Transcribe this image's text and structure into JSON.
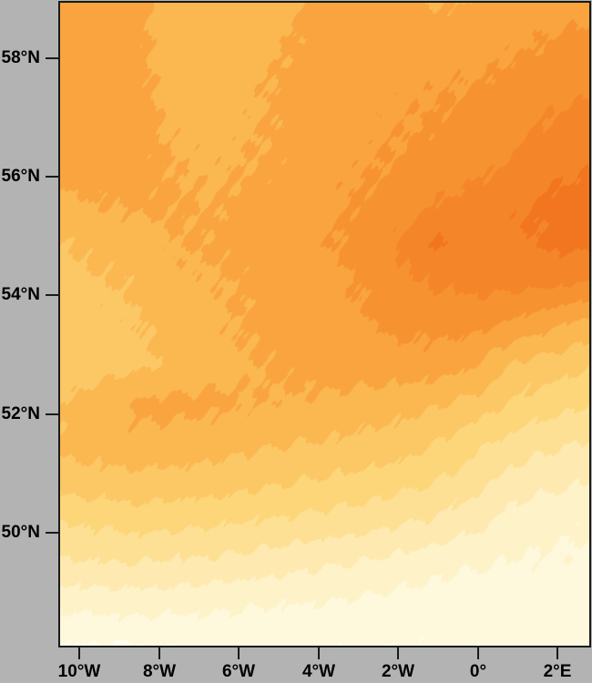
{
  "figure": {
    "background_color": "#B3B3B3",
    "frame_color": "#1A1A1A",
    "tick_color": "#1A1A1A",
    "label_color": "#000000"
  },
  "chart_data": {
    "type": "heatmap",
    "subtype": "filled-contour-map",
    "title": "",
    "xlabel": "",
    "ylabel": "",
    "legend": "none",
    "grid_lines": "off",
    "x_axis": {
      "kind": "longitude",
      "tick_labels": [
        "10°W",
        "8°W",
        "6°W",
        "4°W",
        "2°W",
        "0°",
        "2°E"
      ],
      "tick_values": [
        -10,
        -8,
        -6,
        -4,
        -2,
        0,
        2
      ],
      "range": [
        -10.48,
        2.8
      ]
    },
    "y_axis": {
      "kind": "latitude",
      "tick_labels": [
        "58°N",
        "56°N",
        "54°N",
        "52°N",
        "50°N"
      ],
      "tick_values": [
        58,
        56,
        54,
        52,
        50
      ],
      "range": [
        48.1,
        58.93
      ]
    },
    "palette_light_to_dark": [
      "#FFFDEC",
      "#FEF8DC",
      "#FEF2C8",
      "#FEEAB1",
      "#FDE094",
      "#FDD67A",
      "#FCC765",
      "#FBB750",
      "#F9A43E",
      "#F79231",
      "#F58529",
      "#F2761F"
    ],
    "band_note": "12 discrete fill bands; value index increases from pale cream (south) to deep orange (northeast ridge); no colorbar shown in figure",
    "grid": {
      "lons": [
        -10.48,
        -9.53,
        -8.59,
        -7.64,
        -6.68,
        -5.75,
        -4.79,
        -3.84,
        -2.9,
        -1.95,
        -1.01,
        -0.06,
        0.9,
        1.83,
        2.79
      ],
      "lats": [
        58.91,
        58.24,
        57.56,
        56.88,
        56.2,
        55.53,
        54.86,
        54.17,
        53.5,
        52.82,
        52.15,
        51.46,
        50.79,
        50.12,
        49.44,
        48.76,
        48.08
      ],
      "levels": [
        [
          8.4,
          8.5,
          8.4,
          7.4,
          7.3,
          7.4,
          7.8,
          8.3,
          8.5,
          8.4,
          7.9,
          8.1,
          8.5,
          8.6,
          8.6
        ],
        [
          8.5,
          8.5,
          8.2,
          7.5,
          7.4,
          7.6,
          8.0,
          8.4,
          8.6,
          8.7,
          8.5,
          8.6,
          8.8,
          9.1,
          9.3
        ],
        [
          8.5,
          8.5,
          8.3,
          7.6,
          7.5,
          7.8,
          8.2,
          8.5,
          8.7,
          8.8,
          8.9,
          9.0,
          9.3,
          9.6,
          9.7
        ],
        [
          8.5,
          8.5,
          8.4,
          7.8,
          7.6,
          7.9,
          8.15,
          8.6,
          8.8,
          8.9,
          9.1,
          9.4,
          9.7,
          10.1,
          10.4
        ],
        [
          8.4,
          8.4,
          8.3,
          8.0,
          7.8,
          8.0,
          8.2,
          8.7,
          8.9,
          9.1,
          9.4,
          9.7,
          10.1,
          10.6,
          10.95
        ],
        [
          7.8,
          8.0,
          8.2,
          8.1,
          8.0,
          8.2,
          8.5,
          8.8,
          9.1,
          9.4,
          10.0,
          10.4,
          10.9,
          11.2,
          11.4
        ],
        [
          6.9,
          7.3,
          7.4,
          8.0,
          8.1,
          8.3,
          8.6,
          8.9,
          9.3,
          10.2,
          11.2,
          10.5,
          10.8,
          11.15,
          11.3
        ],
        [
          6.6,
          6.9,
          7.1,
          7.7,
          7.9,
          8.1,
          8.4,
          8.7,
          9.1,
          9.6,
          10.1,
          10.3,
          10.3,
          10.2,
          9.9
        ],
        [
          6.5,
          6.7,
          6.9,
          7.4,
          7.8,
          8.1,
          8.4,
          8.6,
          8.9,
          9.3,
          9.3,
          9.3,
          8.8,
          8.2,
          7.6
        ],
        [
          6.3,
          6.5,
          6.7,
          7.2,
          7.6,
          7.9,
          8.2,
          8.4,
          8.5,
          8.6,
          8.5,
          8.1,
          6.9,
          6.5,
          6.2
        ],
        [
          6.9,
          7.6,
          8.2,
          8.3,
          8.2,
          8.0,
          7.9,
          7.8,
          7.6,
          7.4,
          7.1,
          6.6,
          5.8,
          5.4,
          5.05
        ],
        [
          7.2,
          7.5,
          7.7,
          7.6,
          7.4,
          7.2,
          7.0,
          6.9,
          6.7,
          6.5,
          5.9,
          5.2,
          4.6,
          4.2,
          3.85
        ],
        [
          6.3,
          6.5,
          6.6,
          6.5,
          6.4,
          6.2,
          6.0,
          5.8,
          5.6,
          5.3,
          4.9,
          4.3,
          3.5,
          3.2,
          2.95
        ],
        [
          4.9,
          5.1,
          5.3,
          5.2,
          5.1,
          4.9,
          4.7,
          4.5,
          4.3,
          4.0,
          3.7,
          3.2,
          2.5,
          2.25,
          2.1
        ],
        [
          3.8,
          3.9,
          3.9,
          3.8,
          3.7,
          3.5,
          3.3,
          3.1,
          2.9,
          2.6,
          2.3,
          2.1,
          1.9,
          1.85,
          1.8
        ],
        [
          2.2,
          2.3,
          2.4,
          2.3,
          2.2,
          2.1,
          2.0,
          1.9,
          1.75,
          1.6,
          1.5,
          1.45,
          1.4,
          1.4,
          1.4
        ],
        [
          1.0,
          0.9,
          0.95,
          1.1,
          1.15,
          1.2,
          1.2,
          1.15,
          1.15,
          1.1,
          1.1,
          1.1,
          1.15,
          1.2,
          1.25
        ]
      ]
    }
  }
}
